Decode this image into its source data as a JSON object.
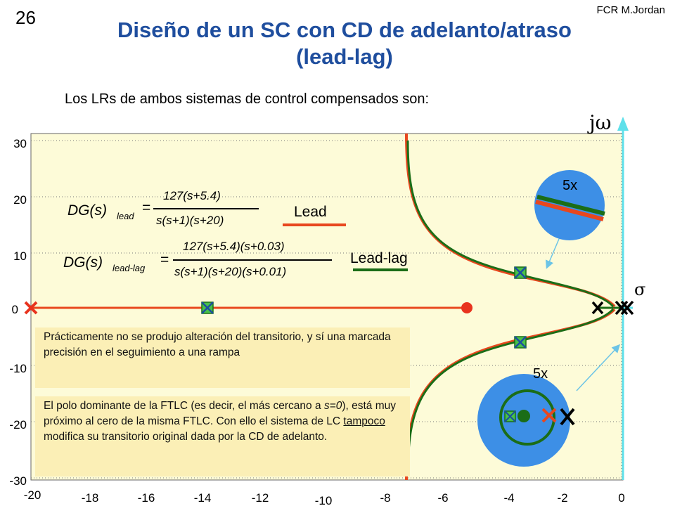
{
  "header": {
    "slide_number": "26",
    "author": "FCR M.Jordan",
    "title_line1": "Diseño de un SC con CD de adelanto/atraso",
    "title_line2": "(lead-lag)",
    "subtitle": "Los LRs de ambos sistemas de control compensados son:"
  },
  "axes": {
    "imag_label": "jω",
    "real_label": "σ",
    "y_ticks": [
      "30",
      "20",
      "10",
      "0",
      "-10",
      "-20",
      "-30"
    ],
    "x_ticks": [
      "-20",
      "-18",
      "-16",
      "-14",
      "-12",
      "-10",
      "-8",
      "-6",
      "-4",
      "-2",
      "0"
    ]
  },
  "formulas": {
    "lead": {
      "lhs": "DG(s)",
      "sub": "lead",
      "eq": "=",
      "num": "127(s+5.4)",
      "den": "s(s+1)(s+20)"
    },
    "leadlag": {
      "lhs": "DG(s)",
      "sub": "lead-lag",
      "eq": "=",
      "num": "127(s+5.4)(s+0.03)",
      "den": "s(s+1)(s+20)(s+0.01)"
    }
  },
  "legend": {
    "lead": "Lead",
    "leadlag": "Lead-lag",
    "lead_color": "#e8471e",
    "leadlag_color": "#1b6d17"
  },
  "zoom": {
    "top_label": "5x",
    "bottom_label": "5x",
    "circle_color": "#3d8fe6"
  },
  "notes": {
    "note1": "Prácticamente no se produjo alteración del transitorio, y sí una marcada precisión en el seguimiento a una rampa",
    "note2_a": "El polo dominante de la FTLC (es decir, el más cercano a ",
    "note2_s": "s=0",
    "note2_b": "), está muy próximo al cero de la misma FTLC. Con ello el sistema de LC ",
    "note2_u": "tampoco",
    "note2_c": " modifica su transitorio original dada por la CD de adelanto."
  }
}
